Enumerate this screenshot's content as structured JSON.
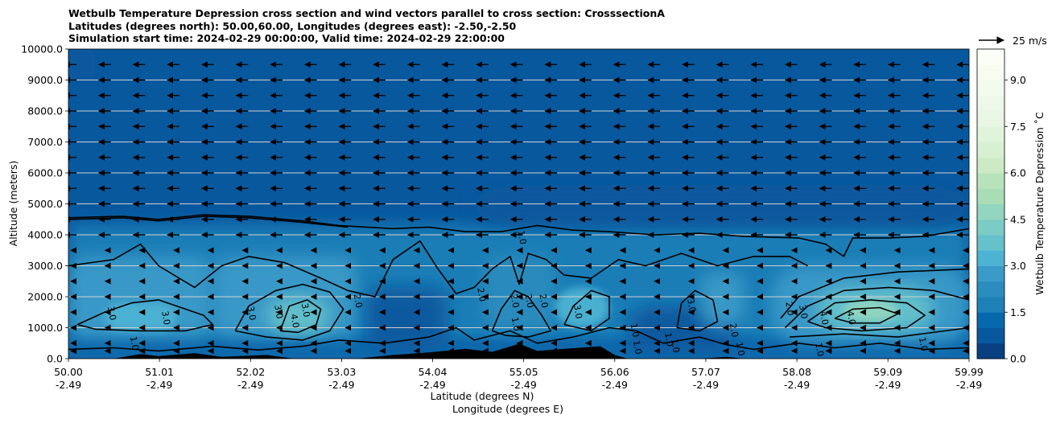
{
  "chart_data": {
    "type": "heatmap",
    "title_lines": [
      "Wetbulb Temperature Depression cross section and wind vectors parallel to cross section: CrosssectionA",
      "Latitudes (degrees north): 50.00,60.00, Longitudes (degrees east): -2.50,-2.50",
      "Simulation start time: 2024-02-29 00:00:00, Valid time: 2024-02-29 22:00:00"
    ],
    "ylabel": "Altitude (meters)",
    "xlabel_lines": [
      "Latitude (degrees N)",
      "Longitude (degrees E)"
    ],
    "xlim": [
      50.0,
      59.99
    ],
    "ylim": [
      0,
      10000
    ],
    "yticks": [
      {
        "value": 0,
        "label": "0.0"
      },
      {
        "value": 1000,
        "label": "1000.0"
      },
      {
        "value": 2000,
        "label": "2000.0"
      },
      {
        "value": 3000,
        "label": "3000.0"
      },
      {
        "value": 4000,
        "label": "4000.0"
      },
      {
        "value": 5000,
        "label": "5000.0"
      },
      {
        "value": 6000,
        "label": "6000.0"
      },
      {
        "value": 7000,
        "label": "7000.0"
      },
      {
        "value": 8000,
        "label": "8000.0"
      },
      {
        "value": 9000,
        "label": "9000.0"
      },
      {
        "value": 10000,
        "label": "10000.0"
      }
    ],
    "xticks": [
      {
        "value": 50.0,
        "lat": "50.00",
        "lon": "-2.49"
      },
      {
        "value": 51.01,
        "lat": "51.01",
        "lon": "-2.49"
      },
      {
        "value": 52.02,
        "lat": "52.02",
        "lon": "-2.49"
      },
      {
        "value": 53.03,
        "lat": "53.03",
        "lon": "-2.49"
      },
      {
        "value": 54.04,
        "lat": "54.04",
        "lon": "-2.49"
      },
      {
        "value": 55.05,
        "lat": "55.05",
        "lon": "-2.49"
      },
      {
        "value": 56.06,
        "lat": "56.06",
        "lon": "-2.49"
      },
      {
        "value": 57.07,
        "lat": "57.07",
        "lon": "-2.49"
      },
      {
        "value": 58.08,
        "lat": "58.08",
        "lon": "-2.49"
      },
      {
        "value": 59.09,
        "lat": "59.09",
        "lon": "-2.49"
      },
      {
        "value": 59.99,
        "lat": "59.99",
        "lon": "-2.49"
      }
    ],
    "grid_horizontal": true,
    "colorbar": {
      "label": "Wetbulb Temperature Depression $^\\circ$C",
      "label_display": "Wetbulb Temperature Depression ˚C",
      "range": [
        0,
        10
      ],
      "levels": 20,
      "ticks": [
        {
          "value": 0,
          "label": "0.0"
        },
        {
          "value": 1.5,
          "label": "1.5"
        },
        {
          "value": 3.0,
          "label": "3.0"
        },
        {
          "value": 4.5,
          "label": "4.5"
        },
        {
          "value": 6.0,
          "label": "6.0"
        },
        {
          "value": 7.5,
          "label": "7.5"
        },
        {
          "value": 9.0,
          "label": "9.0"
        }
      ],
      "colormap": "GnBu_r",
      "colors": [
        "#084081",
        "#08589e",
        "#0868ac",
        "#1f80b8",
        "#2b8cbe",
        "#3a9ac8",
        "#4eb3d3",
        "#65c1ca",
        "#7bccc4",
        "#92d5c0",
        "#a8ddb5",
        "#b8e3ba",
        "#ccebc5",
        "#d8f0d2",
        "#e0f3db",
        "#e8f6e3",
        "#eef8e9",
        "#f3fbef",
        "#f7fcf0",
        "#fbfef7"
      ]
    },
    "quiver_key": {
      "label": "25 m/s",
      "speed": 25
    },
    "wind_field": {
      "component": "parallel",
      "direction": "toward decreasing latitude",
      "rows_altitude": [
        250,
        500,
        1000,
        1500,
        2000,
        2500,
        3000,
        3500,
        4000,
        4500,
        5000,
        5500,
        6000,
        6500,
        7000,
        7500,
        8000,
        8500,
        9000,
        9500
      ],
      "speed_upper_ms": 12,
      "speed_lower_ms": 3
    },
    "contours": {
      "levels": [
        1.0,
        2.0,
        3.0,
        4.0
      ],
      "inline_labels": [
        {
          "text": "3.0",
          "lat": 50.45,
          "alt": 1450
        },
        {
          "text": "3.0",
          "lat": 51.05,
          "alt": 1300
        },
        {
          "text": "1.0",
          "lat": 50.7,
          "alt": 480
        },
        {
          "text": "3.0",
          "lat": 52.0,
          "alt": 1450
        },
        {
          "text": "3.0",
          "lat": 52.3,
          "alt": 1500
        },
        {
          "text": "3.0",
          "lat": 52.6,
          "alt": 1550
        },
        {
          "text": "4.0",
          "lat": 52.48,
          "alt": 1200
        },
        {
          "text": "2.0",
          "lat": 53.18,
          "alt": 1850
        },
        {
          "text": "2.0",
          "lat": 54.55,
          "alt": 2050
        },
        {
          "text": "1.0",
          "lat": 55.0,
          "alt": 3900
        },
        {
          "text": "2.0",
          "lat": 54.92,
          "alt": 1850
        },
        {
          "text": "2.0",
          "lat": 55.08,
          "alt": 1850
        },
        {
          "text": "2.0",
          "lat": 55.24,
          "alt": 1850
        },
        {
          "text": "1.0",
          "lat": 54.93,
          "alt": 1100
        },
        {
          "text": "3.0",
          "lat": 55.62,
          "alt": 1500
        },
        {
          "text": "1.0",
          "lat": 56.25,
          "alt": 900
        },
        {
          "text": "1.0",
          "lat": 56.28,
          "alt": 350
        },
        {
          "text": "1.0",
          "lat": 56.63,
          "alt": 600
        },
        {
          "text": "1.0",
          "lat": 56.7,
          "alt": 400
        },
        {
          "text": "3.0",
          "lat": 56.88,
          "alt": 1700
        },
        {
          "text": "2.0",
          "lat": 57.35,
          "alt": 900
        },
        {
          "text": "1.0",
          "lat": 57.42,
          "alt": 300
        },
        {
          "text": "2.0",
          "lat": 57.97,
          "alt": 1600
        },
        {
          "text": "3.0",
          "lat": 58.12,
          "alt": 1500
        },
        {
          "text": "4.0",
          "lat": 58.35,
          "alt": 1300
        },
        {
          "text": "4.0",
          "lat": 58.65,
          "alt": 1300
        },
        {
          "text": "1.0",
          "lat": 58.3,
          "alt": 280
        },
        {
          "text": "1.0",
          "lat": 59.45,
          "alt": 450
        }
      ]
    },
    "terrain": [
      [
        50.0,
        0
      ],
      [
        50.5,
        0
      ],
      [
        50.8,
        150
      ],
      [
        51.0,
        80
      ],
      [
        51.4,
        180
      ],
      [
        51.7,
        60
      ],
      [
        52.2,
        120
      ],
      [
        52.5,
        0
      ],
      [
        53.2,
        0
      ],
      [
        53.6,
        120
      ],
      [
        54.0,
        200
      ],
      [
        54.4,
        320
      ],
      [
        54.7,
        220
      ],
      [
        55.0,
        480
      ],
      [
        55.2,
        250
      ],
      [
        55.5,
        320
      ],
      [
        55.9,
        400
      ],
      [
        56.06,
        120
      ],
      [
        56.2,
        0
      ],
      [
        57.0,
        0
      ],
      [
        57.3,
        60
      ],
      [
        57.5,
        0
      ],
      [
        59.99,
        0
      ]
    ]
  }
}
